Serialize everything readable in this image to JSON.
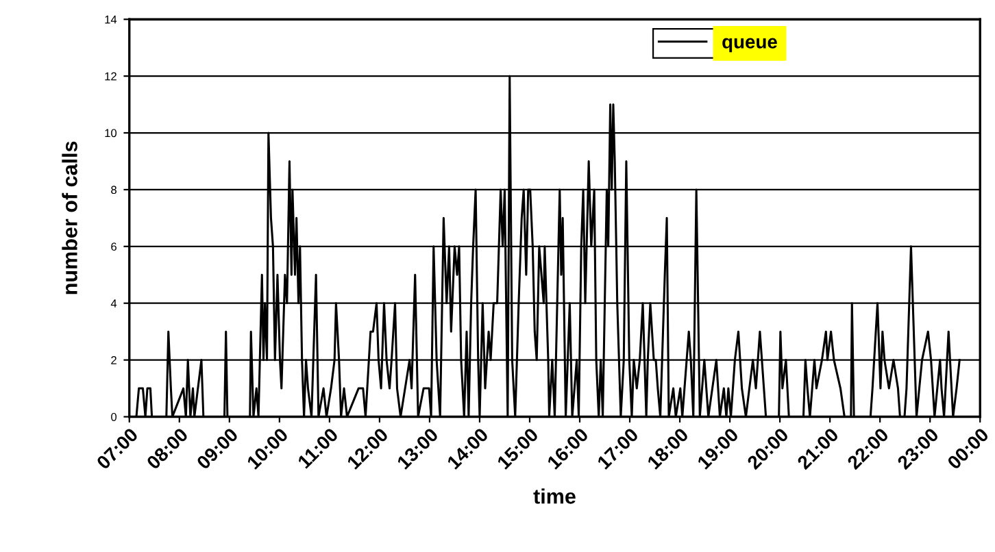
{
  "chart_data": {
    "type": "line",
    "xlabel": "time",
    "ylabel": "number of calls",
    "xlim": [
      7,
      24
    ],
    "ylim": [
      0,
      14
    ],
    "yticks": [
      0,
      2,
      4,
      6,
      8,
      10,
      12,
      14
    ],
    "xticks": [
      {
        "value": 7,
        "label": "07:00"
      },
      {
        "value": 8,
        "label": "08:00"
      },
      {
        "value": 9,
        "label": "09:00"
      },
      {
        "value": 10,
        "label": "10:00"
      },
      {
        "value": 11,
        "label": "11:00"
      },
      {
        "value": 12,
        "label": "12:00"
      },
      {
        "value": 13,
        "label": "13:00"
      },
      {
        "value": 14,
        "label": "14:00"
      },
      {
        "value": 15,
        "label": "15:00"
      },
      {
        "value": 16,
        "label": "16:00"
      },
      {
        "value": 17,
        "label": "17:00"
      },
      {
        "value": 18,
        "label": "18:00"
      },
      {
        "value": 19,
        "label": "19:00"
      },
      {
        "value": 20,
        "label": "20:00"
      },
      {
        "value": 21,
        "label": "21:00"
      },
      {
        "value": 22,
        "label": "22:00"
      },
      {
        "value": 23,
        "label": "23:00"
      },
      {
        "value": 24,
        "label": "00:00"
      }
    ],
    "grid": "y",
    "legend": "top right",
    "marker": "none",
    "line_style": "solid",
    "series": [
      {
        "name": "queue",
        "color": "#000000",
        "x": [
          7.0,
          7.14,
          7.19,
          7.27,
          7.32,
          7.36,
          7.42,
          7.45,
          7.74,
          7.78,
          7.83,
          7.86,
          8.08,
          8.13,
          8.17,
          8.22,
          8.27,
          8.3,
          8.44,
          8.48,
          8.9,
          8.93,
          8.96,
          9.41,
          9.43,
          9.48,
          9.54,
          9.58,
          9.65,
          9.68,
          9.71,
          9.75,
          9.78,
          9.83,
          9.87,
          9.91,
          9.96,
          10.01,
          10.04,
          10.11,
          10.15,
          10.2,
          10.24,
          10.26,
          10.31,
          10.34,
          10.38,
          10.41,
          10.45,
          10.49,
          10.53,
          10.57,
          10.64,
          10.73,
          10.78,
          10.88,
          10.94,
          11.03,
          11.1,
          11.13,
          11.19,
          11.23,
          11.29,
          11.35,
          11.58,
          11.67,
          11.72,
          11.82,
          11.87,
          11.94,
          11.98,
          12.03,
          12.09,
          12.14,
          12.2,
          12.24,
          12.31,
          12.35,
          12.42,
          12.6,
          12.64,
          12.71,
          12.77,
          12.88,
          12.99,
          13.03,
          13.08,
          13.14,
          13.21,
          13.28,
          13.34,
          13.39,
          13.43,
          13.5,
          13.55,
          13.59,
          13.63,
          13.69,
          13.74,
          13.78,
          13.83,
          13.87,
          13.92,
          13.97,
          14.0,
          14.06,
          14.11,
          14.18,
          14.22,
          14.28,
          14.35,
          14.42,
          14.46,
          14.5,
          14.56,
          14.6,
          14.65,
          14.71,
          14.78,
          14.84,
          14.88,
          14.93,
          14.97,
          15.01,
          15.06,
          15.1,
          15.14,
          15.19,
          15.28,
          15.3,
          15.37,
          15.39,
          15.45,
          15.5,
          15.6,
          15.63,
          15.66,
          15.72,
          15.76,
          15.8,
          15.85,
          15.94,
          15.98,
          16.03,
          16.07,
          16.11,
          16.18,
          16.23,
          16.29,
          16.33,
          16.38,
          16.42,
          16.46,
          16.54,
          16.57,
          16.61,
          16.64,
          16.67,
          16.7,
          16.75,
          16.82,
          16.88,
          16.93,
          16.99,
          17.04,
          17.08,
          17.14,
          17.2,
          17.26,
          17.33,
          17.36,
          17.41,
          17.48,
          17.52,
          17.56,
          17.61,
          17.7,
          17.74,
          17.78,
          17.87,
          17.92,
          18.01,
          18.05,
          18.18,
          18.22,
          18.27,
          18.33,
          18.4,
          18.49,
          18.53,
          18.57,
          18.73,
          18.8,
          18.88,
          18.93,
          18.97,
          19.02,
          19.1,
          19.17,
          19.24,
          19.32,
          19.46,
          19.52,
          19.6,
          19.68,
          19.72,
          19.98,
          20.01,
          20.05,
          20.12,
          20.18,
          20.47,
          20.51,
          20.55,
          20.6,
          20.69,
          20.73,
          20.84,
          20.92,
          20.95,
          21.02,
          21.08,
          21.21,
          21.29,
          21.42,
          21.44,
          21.48,
          21.81,
          21.85,
          21.95,
          22.01,
          22.05,
          22.09,
          22.18,
          22.27,
          22.36,
          22.4,
          22.49,
          22.53,
          22.62,
          22.73,
          22.84,
          22.96,
          23.02,
          23.09,
          23.2,
          23.23,
          23.28,
          23.37,
          23.46,
          23.53,
          23.59
        ],
        "values": [
          0,
          0,
          1,
          1,
          0,
          1,
          1,
          0,
          0,
          3,
          1,
          0,
          1,
          0,
          2,
          0,
          1,
          0,
          2,
          0,
          0,
          3,
          0,
          0,
          3,
          0,
          1,
          0,
          5,
          2,
          4,
          2,
          10,
          7,
          6,
          2,
          5,
          2,
          1,
          5,
          4,
          9,
          5,
          8,
          5,
          7,
          4,
          6,
          2,
          0,
          2,
          1,
          0,
          5,
          0,
          1,
          0,
          1,
          2,
          4,
          2,
          0,
          1,
          0,
          1,
          1,
          0,
          3,
          3,
          4,
          2,
          1,
          4,
          2,
          1,
          2,
          4,
          1,
          0,
          2,
          1,
          5,
          0,
          1,
          1,
          0,
          6,
          2,
          0,
          7,
          4,
          6,
          3,
          6,
          5,
          6,
          2,
          0,
          3,
          0,
          4,
          6,
          8,
          2,
          0,
          4,
          1,
          3,
          2,
          4,
          4,
          8,
          6,
          8,
          0,
          12,
          2,
          0,
          4,
          7,
          8,
          5,
          8,
          8,
          6,
          3,
          2,
          6,
          4,
          6,
          2,
          0,
          2,
          0,
          8,
          5,
          7,
          0,
          2,
          4,
          0,
          2,
          0,
          6,
          8,
          4,
          9,
          6,
          8,
          2,
          0,
          2,
          0,
          8,
          6,
          11,
          8,
          11,
          9,
          4,
          0,
          2,
          9,
          2,
          0,
          2,
          1,
          2,
          4,
          0,
          2,
          4,
          2,
          2,
          1,
          0,
          5,
          7,
          0,
          1,
          0,
          1,
          0,
          3,
          2,
          0,
          8,
          0,
          2,
          1,
          0,
          2,
          0,
          1,
          0,
          1,
          0,
          2,
          3,
          1,
          0,
          2,
          1,
          3,
          1,
          0,
          0,
          3,
          1,
          2,
          0,
          0,
          2,
          1,
          0,
          2,
          1,
          2,
          3,
          2,
          3,
          2,
          1,
          0,
          0,
          4,
          0,
          0,
          1,
          4,
          1,
          3,
          2,
          1,
          2,
          1,
          0,
          0,
          1,
          6,
          0,
          2,
          3,
          2,
          0,
          2,
          1,
          0,
          3,
          0,
          1,
          2
        ]
      }
    ]
  }
}
